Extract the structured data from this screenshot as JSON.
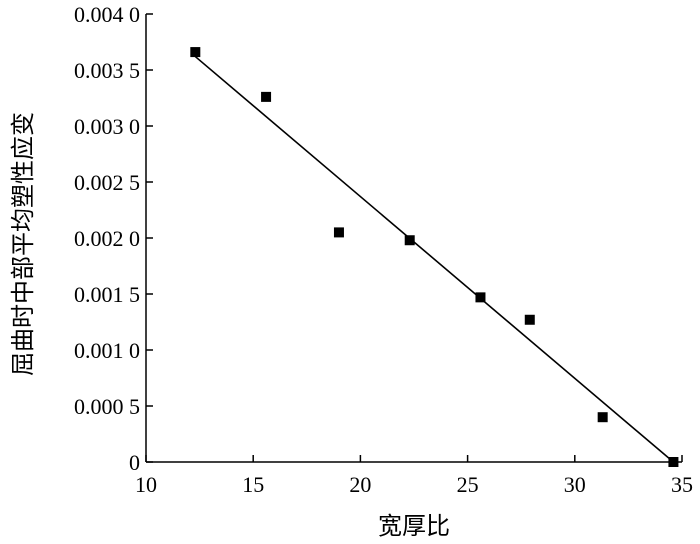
{
  "chart_data": {
    "type": "scatter",
    "title": "",
    "xlabel": "宽厚比",
    "ylabel": "屈曲时中部平均塑性应变",
    "xlim": [
      10,
      35
    ],
    "ylim": [
      0,
      0.004
    ],
    "x_ticks": [
      {
        "value": 10,
        "label": "10"
      },
      {
        "value": 15,
        "label": "15"
      },
      {
        "value": 20,
        "label": "20"
      },
      {
        "value": 25,
        "label": "25"
      },
      {
        "value": 30,
        "label": "30"
      },
      {
        "value": 35,
        "label": "35"
      }
    ],
    "y_ticks": [
      {
        "value": 0,
        "label": "0"
      },
      {
        "value": 0.0005,
        "label": "0.000 5"
      },
      {
        "value": 0.001,
        "label": "0.001 0"
      },
      {
        "value": 0.0015,
        "label": "0.001 5"
      },
      {
        "value": 0.002,
        "label": "0.002 0"
      },
      {
        "value": 0.0025,
        "label": "0.002 5"
      },
      {
        "value": 0.003,
        "label": "0.003 0"
      },
      {
        "value": 0.0035,
        "label": "0.003 5"
      },
      {
        "value": 0.004,
        "label": "0.004 0"
      }
    ],
    "series": [
      {
        "marker": "square",
        "color": "#000000",
        "points": [
          {
            "x": 12.3,
            "y": 0.00366
          },
          {
            "x": 15.6,
            "y": 0.00326
          },
          {
            "x": 19.0,
            "y": 0.00205
          },
          {
            "x": 22.3,
            "y": 0.00198
          },
          {
            "x": 25.6,
            "y": 0.00147
          },
          {
            "x": 27.9,
            "y": 0.00127
          },
          {
            "x": 31.3,
            "y": 0.0004
          },
          {
            "x": 34.6,
            "y": 0.0
          }
        ]
      }
    ],
    "fit_line": {
      "color": "#000000",
      "x": [
        12.3,
        34.6
      ],
      "y": [
        0.00362,
        0.0
      ]
    },
    "grid": false,
    "legend": "none"
  }
}
